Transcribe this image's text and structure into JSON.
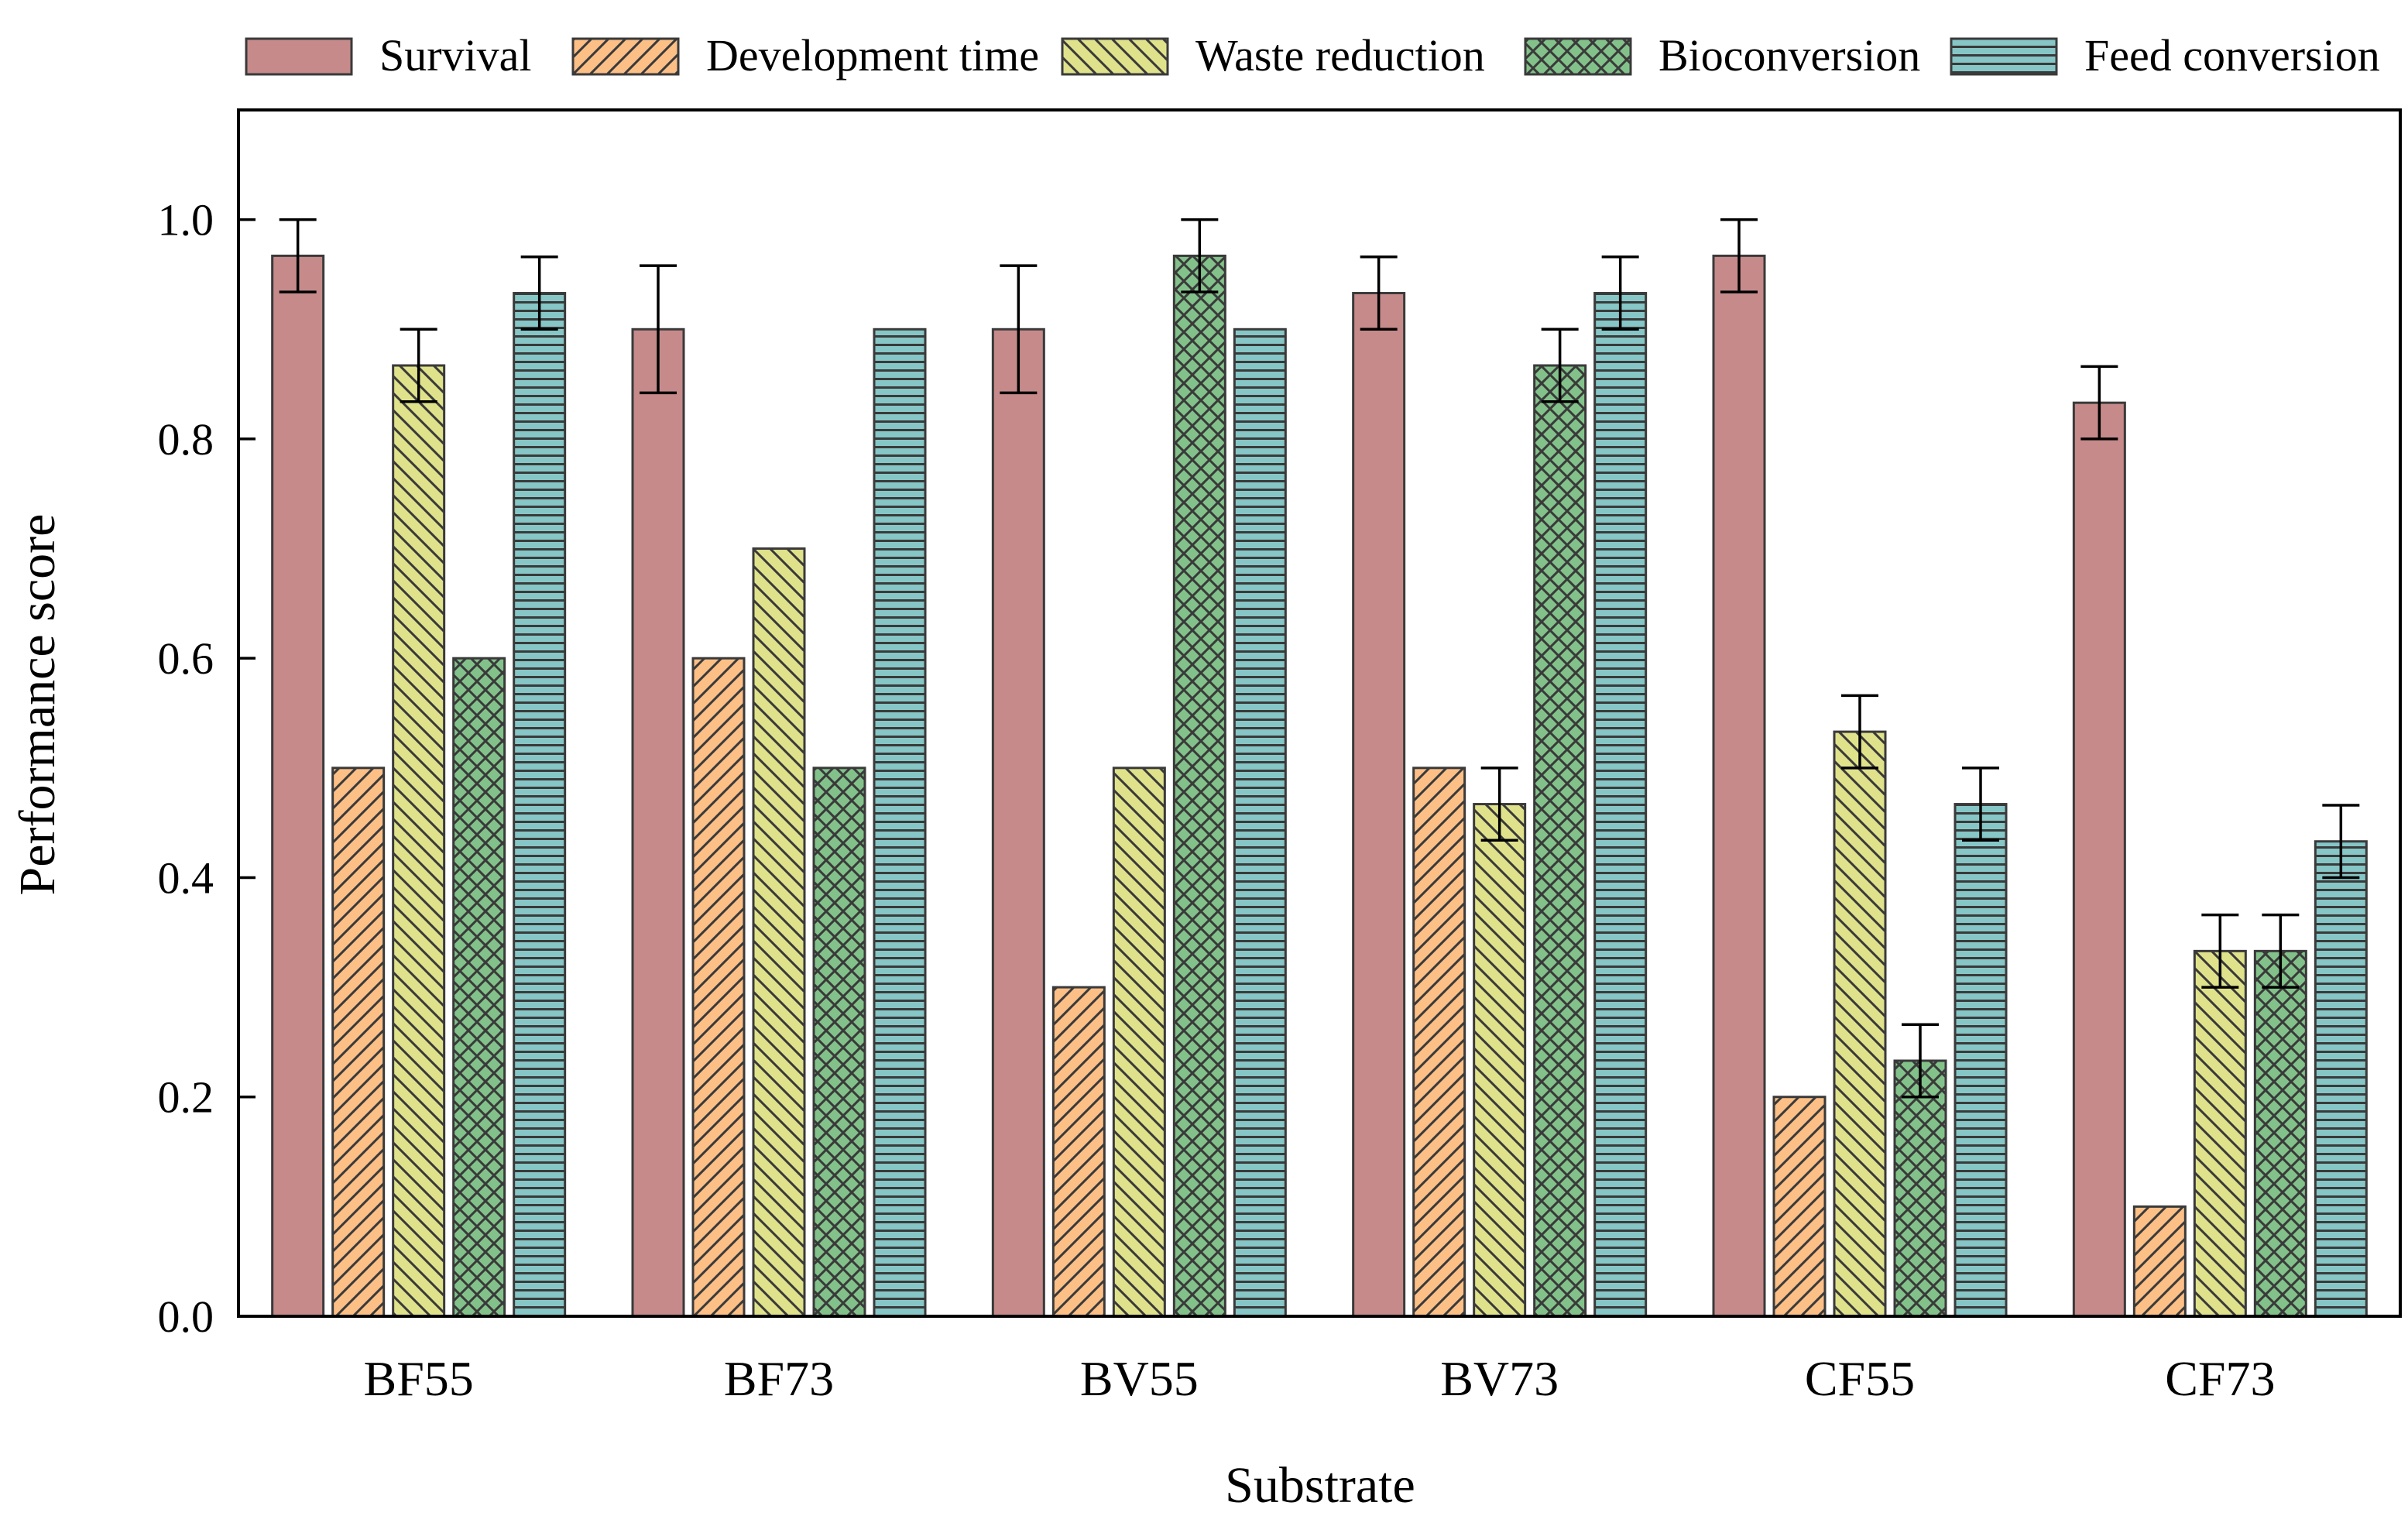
{
  "chart_data": {
    "type": "bar",
    "title": "",
    "xlabel": "Substrate",
    "ylabel": "Performance score",
    "ylim": [
      0,
      1.1
    ],
    "yticks": [
      "0.0",
      "0.2",
      "0.4",
      "0.6",
      "0.8",
      "1.0"
    ],
    "categories": [
      "BF55",
      "BF73",
      "BV55",
      "BV73",
      "CF55",
      "CF73"
    ],
    "legend_position": "top",
    "series": [
      {
        "name": "Survival",
        "color": "#c68a8a",
        "pattern": "solid",
        "values": [
          0.967,
          0.9,
          0.9,
          0.933,
          0.967,
          0.833
        ],
        "errors": [
          0.033,
          0.058,
          0.058,
          0.033,
          0.033,
          0.033
        ]
      },
      {
        "name": "Development time",
        "color": "#fcbf86",
        "pattern": "diagonal",
        "values": [
          0.5,
          0.6,
          0.3,
          0.5,
          0.2,
          0.1
        ],
        "errors": [
          0,
          0,
          0,
          0,
          0,
          0
        ]
      },
      {
        "name": "Waste reduction",
        "color": "#dfe28a",
        "pattern": "diagonal-reverse",
        "values": [
          0.867,
          0.7,
          0.5,
          0.467,
          0.533,
          0.333
        ],
        "errors": [
          0.033,
          0,
          0,
          0.033,
          0.033,
          0.033
        ]
      },
      {
        "name": "Bioconversion",
        "color": "#82c28a",
        "pattern": "crosshatch",
        "values": [
          0.6,
          0.5,
          0.967,
          0.867,
          0.233,
          0.333
        ],
        "errors": [
          0,
          0,
          0.033,
          0.033,
          0.033,
          0.033
        ]
      },
      {
        "name": "Feed conversion",
        "color": "#86c6c6",
        "pattern": "horizontal",
        "values": [
          0.933,
          0.9,
          0.9,
          0.933,
          0.467,
          0.433
        ],
        "errors": [
          0.033,
          0,
          0,
          0.033,
          0.033,
          0.033
        ]
      }
    ]
  }
}
